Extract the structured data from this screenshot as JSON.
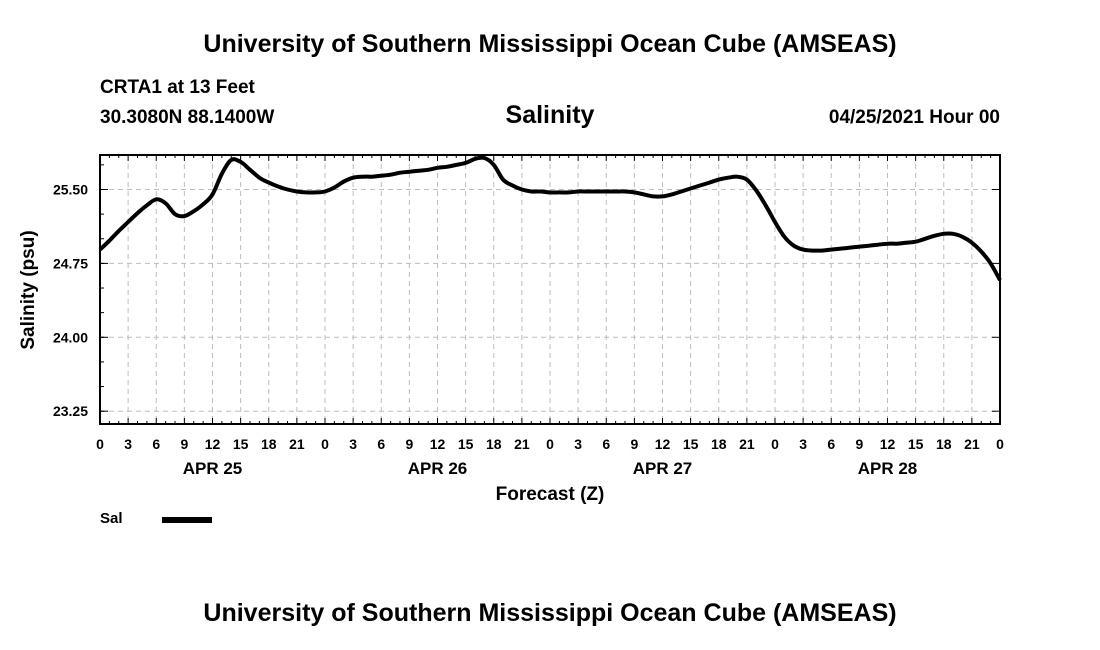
{
  "header": {
    "title": "University of Southern Mississippi Ocean Cube (AMSEAS)",
    "station": "CRTA1 at 13 Feet",
    "coords": "30.3080N  88.1400W",
    "variable": "Salinity",
    "datetime": "04/25/2021 Hour 00"
  },
  "footer": {
    "title": "University of Southern Mississippi Ocean Cube (AMSEAS)"
  },
  "legend": {
    "label": "Sal",
    "color": "#000000"
  },
  "chart_data": {
    "type": "line",
    "title": "Salinity",
    "xlabel": "Forecast (Z)",
    "ylabel": "Salinity (psu)",
    "ylim": [
      23.12,
      25.85
    ],
    "xlim": [
      0,
      96
    ],
    "yticks": [
      23.25,
      24.0,
      24.75,
      25.5
    ],
    "ytick_labels": [
      "23.25",
      "24.00",
      "24.75",
      "25.50"
    ],
    "xticks": [
      0,
      3,
      6,
      9,
      12,
      15,
      18,
      21,
      24,
      27,
      30,
      33,
      36,
      39,
      42,
      45,
      48,
      51,
      54,
      57,
      60,
      63,
      66,
      69,
      72,
      75,
      78,
      81,
      84,
      87,
      90,
      93,
      96
    ],
    "xtick_labels": [
      "0",
      "3",
      "6",
      "9",
      "12",
      "15",
      "18",
      "21",
      "0",
      "3",
      "6",
      "9",
      "12",
      "15",
      "18",
      "21",
      "0",
      "3",
      "6",
      "9",
      "12",
      "15",
      "18",
      "21",
      "0",
      "3",
      "6",
      "9",
      "12",
      "15",
      "18",
      "21",
      "0"
    ],
    "date_labels": [
      {
        "hour": 12,
        "label": "APR 25"
      },
      {
        "hour": 36,
        "label": "APR 26"
      },
      {
        "hour": 60,
        "label": "APR 27"
      },
      {
        "hour": 84,
        "label": "APR 28"
      }
    ],
    "grid": true,
    "series": [
      {
        "name": "Sal",
        "x": [
          0,
          1,
          2,
          3,
          4,
          5,
          6,
          7,
          8,
          9,
          10,
          11,
          12,
          13,
          14,
          15,
          16,
          17,
          18,
          19,
          20,
          21,
          22,
          23,
          24,
          25,
          26,
          27,
          28,
          29,
          30,
          31,
          32,
          33,
          34,
          35,
          36,
          37,
          38,
          39,
          40,
          41,
          42,
          43,
          44,
          45,
          46,
          47,
          48,
          49,
          50,
          51,
          52,
          53,
          54,
          55,
          56,
          57,
          58,
          59,
          60,
          61,
          62,
          63,
          64,
          65,
          66,
          67,
          68,
          69,
          70,
          71,
          72,
          73,
          74,
          75,
          76,
          77,
          78,
          79,
          80,
          81,
          82,
          83,
          84,
          85,
          86,
          87,
          88,
          89,
          90,
          91,
          92,
          93,
          94,
          95,
          96
        ],
        "values": [
          24.89,
          24.98,
          25.08,
          25.17,
          25.26,
          25.34,
          25.4,
          25.36,
          25.25,
          25.23,
          25.28,
          25.35,
          25.45,
          25.66,
          25.8,
          25.78,
          25.7,
          25.62,
          25.57,
          25.53,
          25.5,
          25.48,
          25.47,
          25.47,
          25.48,
          25.52,
          25.58,
          25.62,
          25.63,
          25.63,
          25.64,
          25.65,
          25.67,
          25.68,
          25.69,
          25.7,
          25.72,
          25.73,
          25.75,
          25.77,
          25.81,
          25.82,
          25.75,
          25.6,
          25.54,
          25.5,
          25.48,
          25.48,
          25.47,
          25.47,
          25.47,
          25.48,
          25.48,
          25.48,
          25.48,
          25.48,
          25.48,
          25.47,
          25.45,
          25.43,
          25.43,
          25.45,
          25.48,
          25.51,
          25.54,
          25.57,
          25.6,
          25.62,
          25.63,
          25.6,
          25.49,
          25.34,
          25.17,
          25.02,
          24.93,
          24.89,
          24.88,
          24.88,
          24.89,
          24.9,
          24.91,
          24.92,
          24.93,
          24.94,
          24.95,
          24.95,
          24.96,
          24.97,
          25.0,
          25.03,
          25.05,
          25.05,
          25.02,
          24.96,
          24.87,
          24.75,
          24.58
        ]
      }
    ]
  }
}
